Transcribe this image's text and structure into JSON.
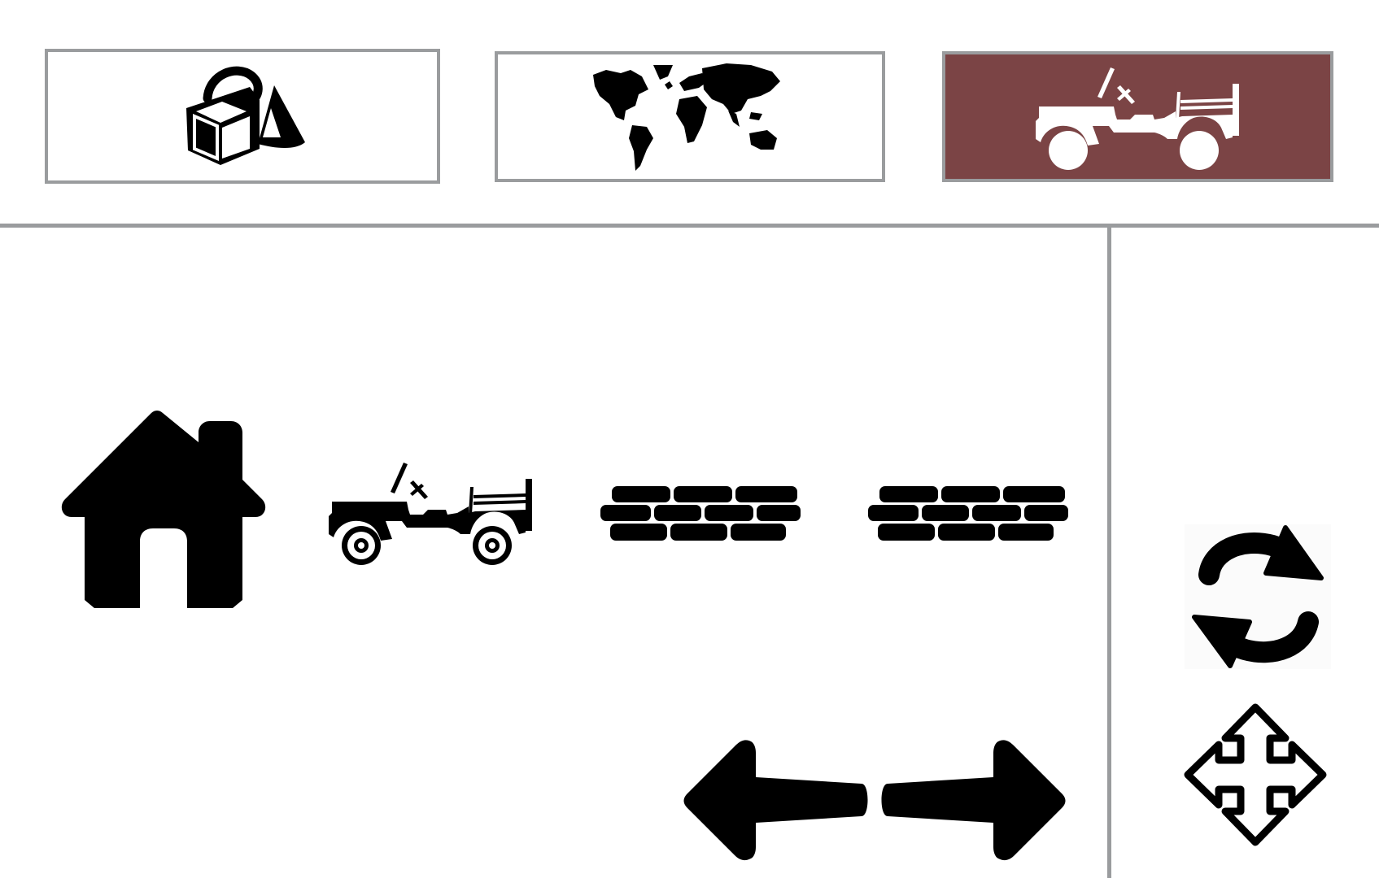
{
  "palette": {
    "active_tab_bg": "#7b4445",
    "border": "#9a9c9e",
    "icon": "#000000",
    "active_icon": "#ffffff"
  },
  "tabs": [
    {
      "icon": "shapes-icon",
      "active": false
    },
    {
      "icon": "world-map-icon",
      "active": false
    },
    {
      "icon": "jeep-icon",
      "active": true
    }
  ],
  "board": {
    "items": [
      "house-icon",
      "jeep-icon",
      "brick-wall-icon",
      "brick-wall-icon"
    ]
  },
  "controls": [
    "flip-left-right-icon",
    "rotate-icon",
    "move-icon"
  ]
}
